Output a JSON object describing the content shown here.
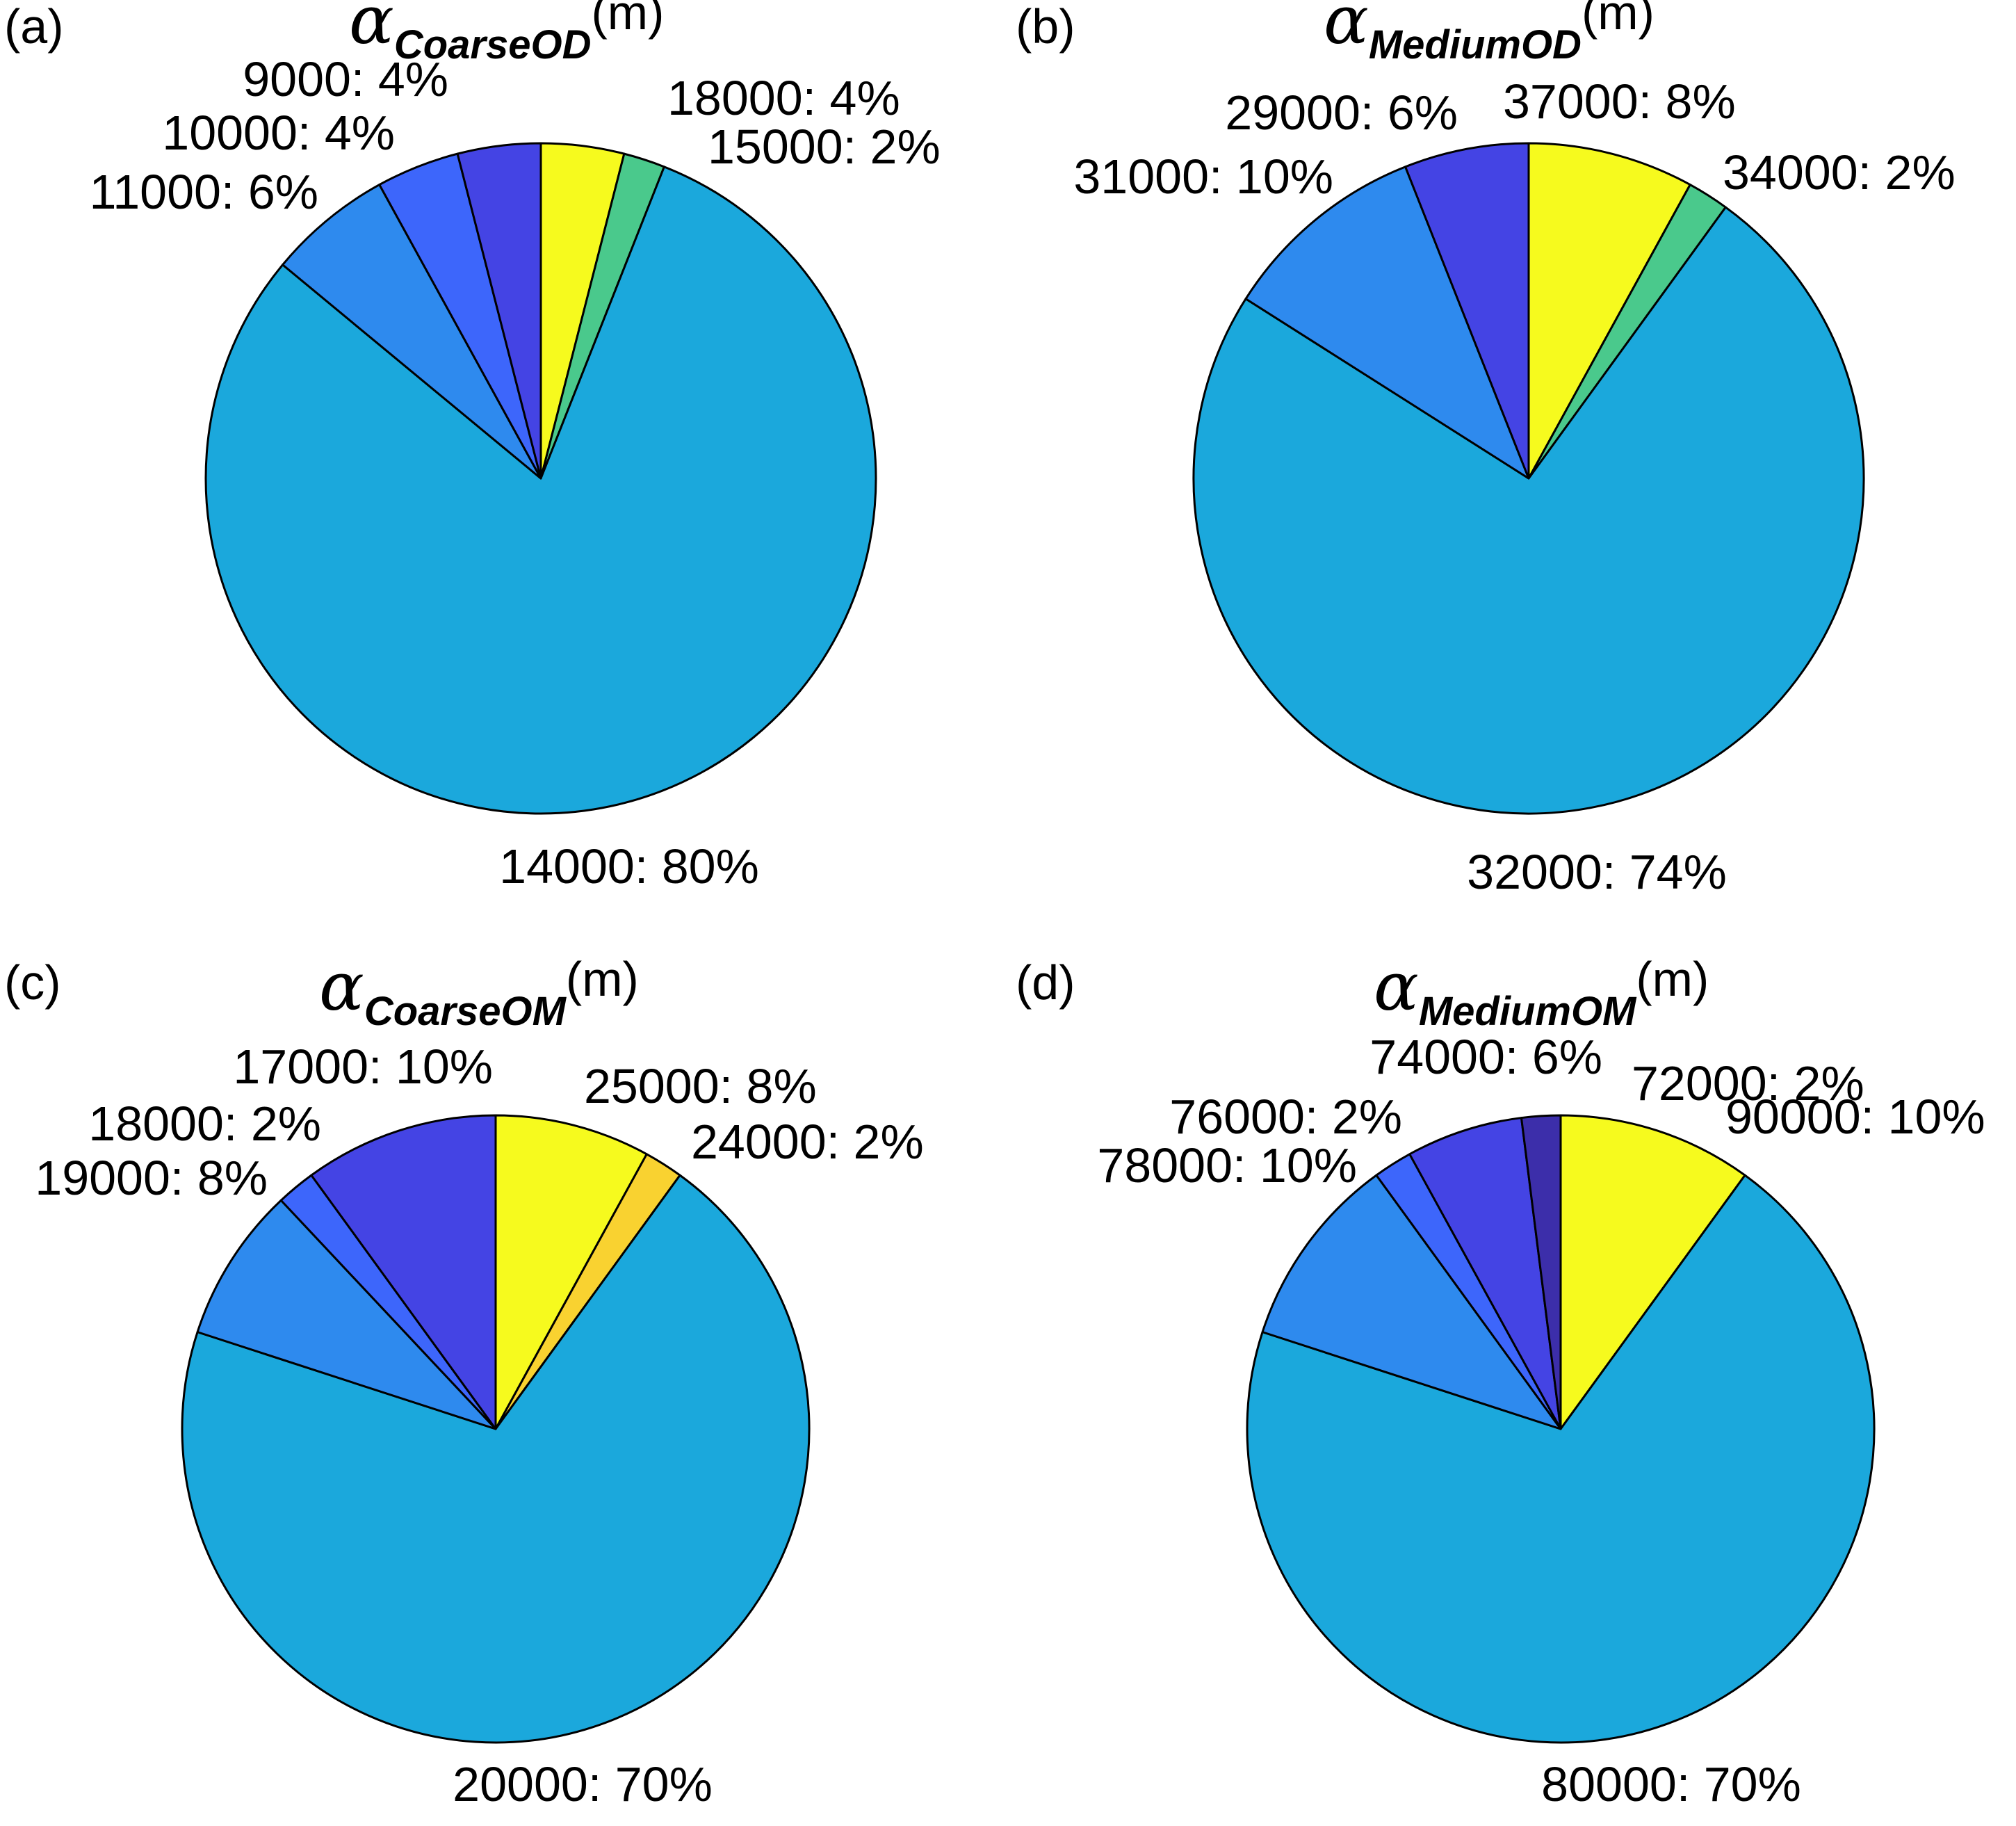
{
  "chart_data": [
    {
      "type": "pie",
      "panel": "(a)",
      "title": {
        "symbol": "α",
        "subscript": "CoarseOD",
        "unit": "(m)"
      },
      "slices": [
        {
          "label": "18000: 4%",
          "value": 4,
          "color": "#f6fa1e"
        },
        {
          "label": "15000: 2%",
          "value": 2,
          "color": "#4ac98c"
        },
        {
          "label": "14000: 80%",
          "value": 80,
          "color": "#1ba8dc"
        },
        {
          "label": "11000: 6%",
          "value": 6,
          "color": "#2e8aee"
        },
        {
          "label": "10000: 4%",
          "value": 4,
          "color": "#3d66fb"
        },
        {
          "label": "9000: 4%",
          "value": 4,
          "color": "#4444e4"
        }
      ]
    },
    {
      "type": "pie",
      "panel": "(b)",
      "title": {
        "symbol": "α",
        "subscript": "MediumOD",
        "unit": "(m)"
      },
      "slices": [
        {
          "label": "37000: 8%",
          "value": 8,
          "color": "#f6fa1e"
        },
        {
          "label": "34000: 2%",
          "value": 2,
          "color": "#4ac98c"
        },
        {
          "label": "32000: 74%",
          "value": 74,
          "color": "#1ba8dc"
        },
        {
          "label": "31000: 10%",
          "value": 10,
          "color": "#2e8aee"
        },
        {
          "label": "29000: 6%",
          "value": 6,
          "color": "#4444e4"
        }
      ]
    },
    {
      "type": "pie",
      "panel": "(c)",
      "title": {
        "symbol": "α",
        "subscript": "CoarseOM",
        "unit": "(m)"
      },
      "slices": [
        {
          "label": "25000: 8%",
          "value": 8,
          "color": "#f6fa1e"
        },
        {
          "label": "24000: 2%",
          "value": 2,
          "color": "#f9d230"
        },
        {
          "label": "20000: 70%",
          "value": 70,
          "color": "#1ba8dc"
        },
        {
          "label": "19000: 8%",
          "value": 8,
          "color": "#2e8aee"
        },
        {
          "label": "18000: 2%",
          "value": 2,
          "color": "#3d66fb"
        },
        {
          "label": "17000: 10%",
          "value": 10,
          "color": "#4444e4"
        }
      ]
    },
    {
      "type": "pie",
      "panel": "(d)",
      "title": {
        "symbol": "α",
        "subscript": "MediumOM",
        "unit": "(m)"
      },
      "slices": [
        {
          "label": "90000: 10%",
          "value": 10,
          "color": "#f6fa1e"
        },
        {
          "label": "80000: 70%",
          "value": 70,
          "color": "#1ba8dc"
        },
        {
          "label": "78000: 10%",
          "value": 10,
          "color": "#2e8aee"
        },
        {
          "label": "76000: 2%",
          "value": 2,
          "color": "#3d66fb"
        },
        {
          "label": "74000: 6%",
          "value": 6,
          "color": "#4444e4"
        },
        {
          "label": "72000: 2%",
          "value": 2,
          "color": "#3c2eaa"
        }
      ]
    }
  ]
}
